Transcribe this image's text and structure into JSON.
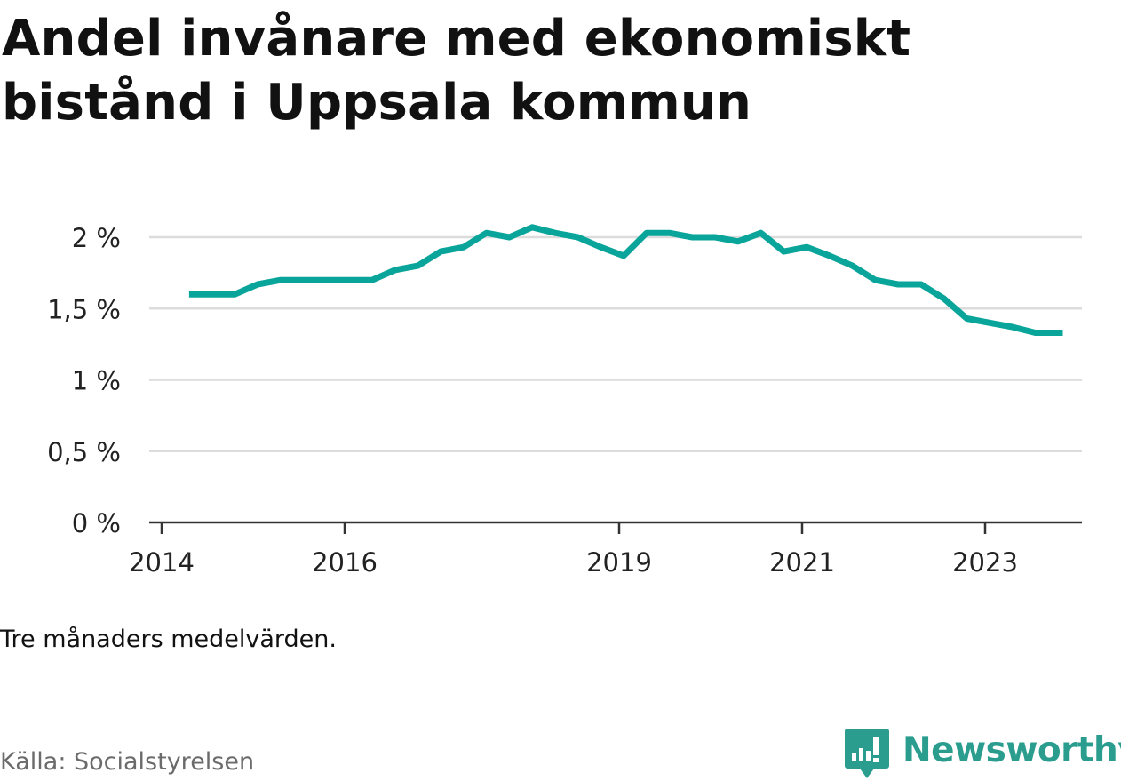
{
  "title": "Andel invånare med ekonomiskt bistånd i Uppsala kommun",
  "note": "Tre månaders medelvärden.",
  "source": "Källa: Socialstyrelsen",
  "brand": {
    "name": "Newsworthy",
    "icon": "newsworthy-logo-icon",
    "color": "#2a9d8f"
  },
  "chart_data": {
    "type": "line",
    "title": "Andel invånare med ekonomiskt bistånd i Uppsala kommun",
    "xlabel": "",
    "ylabel": "",
    "ylim": [
      0,
      2
    ],
    "yticks": [
      0,
      0.5,
      1,
      1.5,
      2
    ],
    "ytick_labels": [
      "0 %",
      "0,5 %",
      "1 %",
      "1,5 %",
      "2 %"
    ],
    "xlim": [
      2014,
      2024.05
    ],
    "xticks": [
      2014,
      2016,
      2019,
      2021,
      2023
    ],
    "xtick_labels": [
      "2014",
      "2016",
      "2019",
      "2021",
      "2023"
    ],
    "grid": true,
    "line_color": "#0aa59a",
    "series": [
      {
        "name": "",
        "x": [
          2014.3,
          2014.55,
          2014.8,
          2015.05,
          2015.3,
          2015.55,
          2015.8,
          2016.05,
          2016.3,
          2016.55,
          2016.8,
          2017.05,
          2017.3,
          2017.55,
          2017.8,
          2018.05,
          2018.3,
          2018.55,
          2018.8,
          2019.05,
          2019.3,
          2019.55,
          2019.8,
          2020.05,
          2020.3,
          2020.55,
          2020.8,
          2021.05,
          2021.3,
          2021.55,
          2021.8,
          2022.05,
          2022.3,
          2022.55,
          2022.8,
          2023.05,
          2023.3,
          2023.55,
          2023.85
        ],
        "values": [
          1.6,
          1.6,
          1.6,
          1.67,
          1.7,
          1.7,
          1.7,
          1.7,
          1.7,
          1.77,
          1.8,
          1.9,
          1.93,
          2.03,
          2.0,
          2.07,
          2.03,
          2.0,
          1.93,
          1.87,
          2.03,
          2.03,
          2.0,
          2.0,
          1.97,
          2.03,
          1.9,
          1.93,
          1.87,
          1.8,
          1.7,
          1.67,
          1.67,
          1.57,
          1.43,
          1.4,
          1.37,
          1.33,
          1.33
        ]
      }
    ]
  }
}
